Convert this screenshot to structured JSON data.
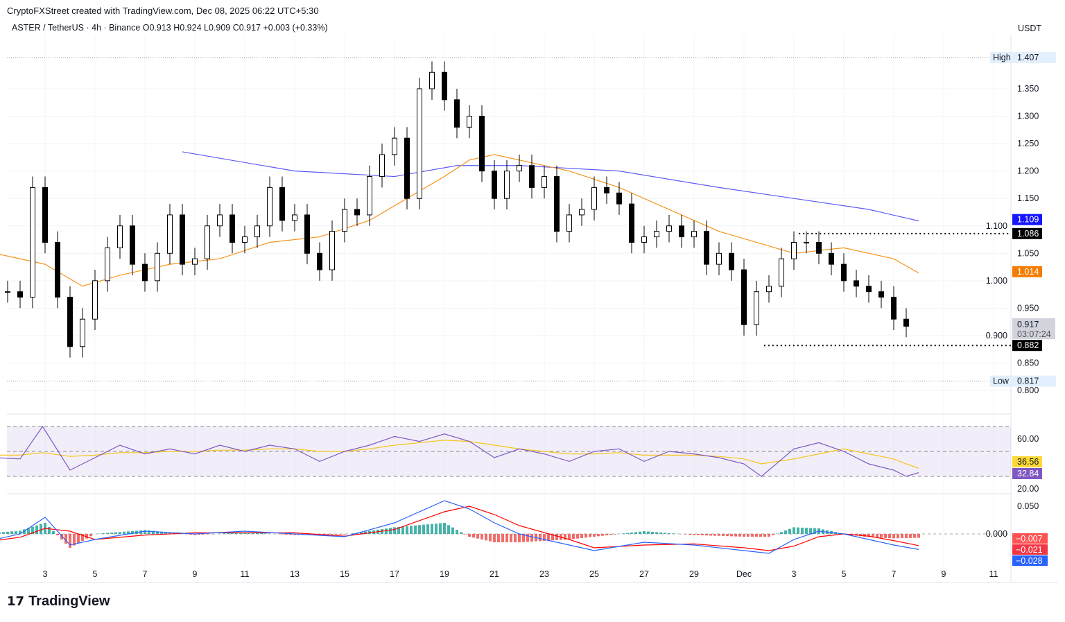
{
  "header": {
    "attribution": "CryptoFXStreet created with TradingView.com, Dec 08, 2025 06:22 UTC+5:30",
    "legend": "ASTER / TetherUS · 4h · Binance  O0.913  H0.924  L0.909  C0.917  +0.003 (+0.33%)"
  },
  "currency": "USDT",
  "brand": "TradingView",
  "chart_data": {
    "type": "candlestick",
    "x_ticks": [
      {
        "day": 3,
        "label": "3"
      },
      {
        "day": 5,
        "label": "5"
      },
      {
        "day": 7,
        "label": "7"
      },
      {
        "day": 9,
        "label": "9"
      },
      {
        "day": 11,
        "label": "11"
      },
      {
        "day": 13,
        "label": "13"
      },
      {
        "day": 15,
        "label": "15"
      },
      {
        "day": 17,
        "label": "17"
      },
      {
        "day": 19,
        "label": "19"
      },
      {
        "day": 21,
        "label": "21"
      },
      {
        "day": 23,
        "label": "23"
      },
      {
        "day": 25,
        "label": "25"
      },
      {
        "day": 27,
        "label": "27"
      },
      {
        "day": 29,
        "label": "29"
      },
      {
        "day": 31,
        "label": "Dec"
      },
      {
        "day": 33,
        "label": "3"
      },
      {
        "day": 35,
        "label": "5"
      },
      {
        "day": 37,
        "label": "7"
      },
      {
        "day": 39,
        "label": "9"
      },
      {
        "day": 41,
        "label": "11"
      }
    ],
    "y_ticks": [
      "1.350",
      "1.300",
      "1.250",
      "1.200",
      "1.150",
      "1.100",
      "1.050",
      "1.000",
      "0.950",
      "0.900",
      "0.850",
      "0.800"
    ],
    "ylim": [
      0.78,
      1.42
    ],
    "high": {
      "label": "High",
      "value": "1.407"
    },
    "low": {
      "label": "Low",
      "value": "0.817"
    },
    "closes_12h_from_nov1_12h": [
      0.98,
      0.97,
      1.17,
      1.07,
      0.97,
      0.88,
      0.93,
      1.0,
      1.06,
      1.1,
      1.03,
      1.0,
      1.05,
      1.12,
      1.03,
      1.04,
      1.1,
      1.12,
      1.07,
      1.08,
      1.1,
      1.17,
      1.11,
      1.12,
      1.05,
      1.02,
      1.09,
      1.13,
      1.12,
      1.19,
      1.23,
      1.26,
      1.15,
      1.35,
      1.38,
      1.33,
      1.28,
      1.3,
      1.2,
      1.15,
      1.2,
      1.21,
      1.17,
      1.19,
      1.09,
      1.12,
      1.13,
      1.17,
      1.16,
      1.14,
      1.07,
      1.08,
      1.09,
      1.1,
      1.08,
      1.09,
      1.03,
      1.05,
      1.02,
      0.92,
      0.98,
      0.99,
      1.04,
      1.07,
      1.07,
      1.05,
      1.03,
      1.0,
      0.99,
      0.98,
      0.97,
      0.93,
      0.917
    ],
    "ma_blue": {
      "day": [
        8.5,
        13,
        17,
        19.5,
        22,
        26,
        30,
        33,
        36,
        38
      ],
      "value": [
        1.235,
        1.2,
        1.19,
        1.21,
        1.21,
        1.2,
        1.17,
        1.15,
        1.13,
        1.109
      ],
      "color": "#5b5bf5",
      "last_label": "1.109"
    },
    "ma_orange": {
      "day": [
        1,
        3,
        4.5,
        6,
        8,
        10,
        12,
        14,
        16,
        17.5,
        19,
        20,
        21,
        22,
        24,
        26,
        28,
        30,
        31.5,
        33,
        35,
        37,
        38
      ],
      "value": [
        1.05,
        1.03,
        0.99,
        1.01,
        1.03,
        1.04,
        1.07,
        1.08,
        1.11,
        1.15,
        1.19,
        1.22,
        1.23,
        1.22,
        1.2,
        1.17,
        1.13,
        1.09,
        1.07,
        1.05,
        1.06,
        1.04,
        1.014
      ],
      "color": "#f7931a",
      "last_label": "1.014"
    },
    "levels": [
      {
        "value": 1.086,
        "label": "1.086",
        "from_day": 33.2
      },
      {
        "value": 0.882,
        "label": "0.882",
        "from_day": 31.8
      }
    ],
    "last_price": {
      "value": "0.917",
      "countdown": "03:07:24"
    },
    "rsi": {
      "ticks": [
        "60.00",
        "20.00"
      ],
      "day": [
        1,
        2,
        2.9,
        4,
        5,
        6,
        7,
        8,
        9,
        10,
        11,
        12,
        13,
        14,
        15,
        16,
        17,
        18,
        19,
        20,
        21,
        22,
        23,
        24,
        25,
        26,
        27,
        28,
        29,
        30,
        31,
        31.7,
        33,
        34,
        35,
        36,
        37,
        37.5,
        38
      ],
      "value": [
        45,
        44,
        70,
        35,
        45,
        55,
        48,
        52,
        48,
        55,
        50,
        55,
        52,
        42,
        50,
        55,
        62,
        58,
        64,
        58,
        45,
        52,
        48,
        42,
        50,
        52,
        42,
        50,
        48,
        45,
        40,
        30,
        52,
        57,
        50,
        40,
        35,
        30,
        33
      ],
      "ma": [
        47,
        47,
        49,
        46,
        47,
        49,
        49,
        50,
        50,
        51,
        51,
        52,
        52,
        50,
        50,
        52,
        55,
        57,
        59,
        58,
        55,
        52,
        50,
        48,
        48,
        49,
        47,
        47,
        47,
        46,
        44,
        40,
        44,
        48,
        52,
        48,
        44,
        40,
        36.56
      ],
      "rsi_label": "32.84",
      "ma_label": "36.56"
    },
    "macd": {
      "ticks": [
        "0.050",
        "0.000"
      ],
      "day": [
        1,
        2,
        3,
        4,
        5,
        7,
        9,
        11,
        13,
        15,
        17,
        19,
        20,
        21,
        22,
        24,
        25,
        27,
        29,
        31,
        32,
        33,
        34,
        35,
        36,
        37,
        38
      ],
      "macd": [
        -0.01,
        0.0,
        0.03,
        -0.02,
        -0.01,
        0.005,
        0.0,
        0.005,
        0.0,
        -0.005,
        0.02,
        0.06,
        0.045,
        0.02,
        0.0,
        -0.02,
        -0.03,
        -0.015,
        -0.02,
        -0.03,
        -0.035,
        -0.01,
        0.005,
        0.0,
        -0.01,
        -0.02,
        -0.028
      ],
      "signal": [
        -0.012,
        -0.006,
        0.01,
        0.005,
        -0.01,
        -0.002,
        0.002,
        0.002,
        0.002,
        -0.004,
        0.008,
        0.04,
        0.05,
        0.035,
        0.015,
        -0.01,
        -0.025,
        -0.02,
        -0.018,
        -0.025,
        -0.03,
        -0.022,
        -0.005,
        0.0,
        -0.004,
        -0.012,
        -0.021
      ],
      "hist_label": "−0.007",
      "signal_label": "−0.021",
      "macd_label": "−0.028"
    }
  }
}
